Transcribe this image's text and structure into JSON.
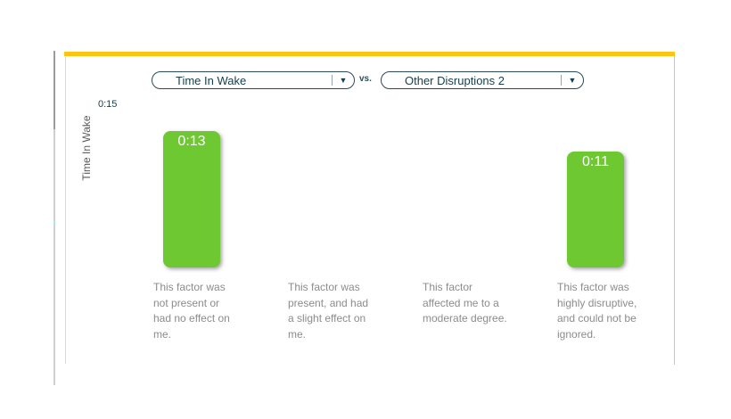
{
  "selectors": {
    "metric": {
      "value": "Time In Wake"
    },
    "vs_label": "vs.",
    "comparison": {
      "value": "Other Disruptions 2"
    }
  },
  "colors": {
    "accent_yellow": "#FFC40D",
    "bar_green": "#6DC831",
    "dropdown_text": "#17404F",
    "category_text": "#8C8C8C"
  },
  "chart_data": {
    "type": "bar",
    "title": "",
    "ylabel": "Time In Wake",
    "y_axis_top_tick": "0:15",
    "ylim_minutes": [
      0,
      15
    ],
    "grid": false,
    "legend": "none",
    "categories": [
      "This factor was not present or had no effect on me.",
      "This factor was present, and had a slight effect on me.",
      "This factor affected me to a moderate degree.",
      "This factor was highly disruptive, and could not be ignored."
    ],
    "values_minutes": [
      13,
      null,
      null,
      11
    ],
    "value_labels": [
      "0:13",
      "",
      "",
      "0:11"
    ],
    "bar_color": "#6DC831"
  }
}
